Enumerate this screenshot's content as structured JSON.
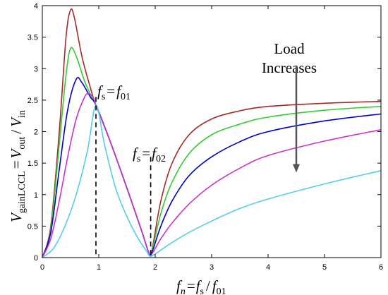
{
  "chart_data": {
    "type": "line",
    "xlim": [
      0,
      6
    ],
    "ylim": [
      0,
      4
    ],
    "x_ticks": [
      "0",
      "1",
      "2",
      "3",
      "4",
      "5",
      "6"
    ],
    "y_ticks": [
      "0",
      "0.5",
      "1",
      "1.5",
      "2",
      "2.5",
      "3",
      "3.5",
      "4"
    ],
    "grid": false,
    "xlabel": {
      "var": "f",
      "var_sub": "n",
      "eq": "=",
      "num": "f",
      "num_sub": "s",
      "slash": "/",
      "den": "f",
      "den_sub": "01"
    },
    "ylabel": {
      "var": "V",
      "var_sub": "gainLCCL",
      "eq": "=",
      "num": "V",
      "num_sub": "out",
      "slash": "/",
      "den": "V",
      "den_sub": "in"
    },
    "annotations": {
      "fs_f01": {
        "a": "f",
        "a_sub": "s",
        "eq": "=",
        "b": "f",
        "b_sub": "01"
      },
      "fs_f02": {
        "a": "f",
        "a_sub": "s",
        "eq": "=",
        "b": "f",
        "b_sub": "02"
      },
      "load_line1": "Load",
      "load_line2": "Increases"
    },
    "reference_lines": [
      {
        "x": 0.95,
        "y_top": 2.55
      },
      {
        "x": 1.92,
        "y_top": 1.6
      }
    ],
    "arrow": {
      "x": 4.5,
      "y_from": 3.05,
      "y_to": 1.35
    },
    "series": [
      {
        "color": "#a52a2a",
        "points": [
          [
            0,
            0
          ],
          [
            0.15,
            0.5
          ],
          [
            0.3,
            2.0
          ],
          [
            0.42,
            3.5
          ],
          [
            0.5,
            3.93
          ],
          [
            0.57,
            3.8
          ],
          [
            0.7,
            3.2
          ],
          [
            0.85,
            2.7
          ],
          [
            0.95,
            2.42
          ],
          [
            1.2,
            1.85
          ],
          [
            1.5,
            1.1
          ],
          [
            1.75,
            0.45
          ],
          [
            1.9,
            0.05
          ],
          [
            1.95,
            0.15
          ],
          [
            2.1,
            0.9
          ],
          [
            2.3,
            1.5
          ],
          [
            2.6,
            1.95
          ],
          [
            3,
            2.2
          ],
          [
            3.5,
            2.33
          ],
          [
            4,
            2.4
          ],
          [
            5,
            2.45
          ],
          [
            6,
            2.48
          ]
        ]
      },
      {
        "color": "#33cc33",
        "points": [
          [
            0,
            0
          ],
          [
            0.15,
            0.45
          ],
          [
            0.3,
            1.8
          ],
          [
            0.42,
            2.9
          ],
          [
            0.5,
            3.32
          ],
          [
            0.6,
            3.2
          ],
          [
            0.75,
            2.8
          ],
          [
            0.9,
            2.5
          ],
          [
            0.95,
            2.42
          ],
          [
            1.2,
            1.85
          ],
          [
            1.5,
            1.1
          ],
          [
            1.75,
            0.45
          ],
          [
            1.9,
            0.05
          ],
          [
            1.95,
            0.13
          ],
          [
            2.1,
            0.7
          ],
          [
            2.3,
            1.2
          ],
          [
            2.6,
            1.65
          ],
          [
            3,
            1.95
          ],
          [
            3.5,
            2.12
          ],
          [
            4,
            2.23
          ],
          [
            5,
            2.34
          ],
          [
            6,
            2.4
          ]
        ]
      },
      {
        "color": "#0000cc",
        "points": [
          [
            0,
            0
          ],
          [
            0.15,
            0.4
          ],
          [
            0.3,
            1.4
          ],
          [
            0.45,
            2.35
          ],
          [
            0.6,
            2.83
          ],
          [
            0.7,
            2.78
          ],
          [
            0.85,
            2.55
          ],
          [
            0.95,
            2.42
          ],
          [
            1.2,
            1.85
          ],
          [
            1.5,
            1.1
          ],
          [
            1.75,
            0.45
          ],
          [
            1.9,
            0.05
          ],
          [
            1.95,
            0.1
          ],
          [
            2.1,
            0.5
          ],
          [
            2.3,
            0.9
          ],
          [
            2.6,
            1.3
          ],
          [
            3,
            1.6
          ],
          [
            3.5,
            1.84
          ],
          [
            4,
            2.0
          ],
          [
            5,
            2.17
          ],
          [
            6,
            2.28
          ]
        ]
      },
      {
        "color": "#cc33cc",
        "points": [
          [
            0,
            0
          ],
          [
            0.15,
            0.3
          ],
          [
            0.3,
            0.9
          ],
          [
            0.45,
            1.6
          ],
          [
            0.6,
            2.2
          ],
          [
            0.75,
            2.55
          ],
          [
            0.82,
            2.6
          ],
          [
            0.9,
            2.55
          ],
          [
            0.95,
            2.42
          ],
          [
            1.2,
            1.85
          ],
          [
            1.5,
            1.1
          ],
          [
            1.75,
            0.45
          ],
          [
            1.9,
            0.05
          ],
          [
            1.95,
            0.07
          ],
          [
            2.1,
            0.3
          ],
          [
            2.3,
            0.55
          ],
          [
            2.6,
            0.85
          ],
          [
            3,
            1.15
          ],
          [
            3.5,
            1.42
          ],
          [
            4,
            1.62
          ],
          [
            5,
            1.85
          ],
          [
            6,
            2.03
          ]
        ]
      },
      {
        "color": "#55ccee",
        "points": [
          [
            0,
            0
          ],
          [
            0.2,
            0.15
          ],
          [
            0.4,
            0.5
          ],
          [
            0.6,
            1.0
          ],
          [
            0.8,
            1.7
          ],
          [
            0.95,
            2.42
          ],
          [
            1.1,
            1.8
          ],
          [
            1.3,
            1.1
          ],
          [
            1.5,
            0.65
          ],
          [
            1.7,
            0.3
          ],
          [
            1.85,
            0.1
          ],
          [
            1.92,
            0.02
          ],
          [
            2.1,
            0.12
          ],
          [
            2.3,
            0.24
          ],
          [
            2.6,
            0.4
          ],
          [
            3,
            0.58
          ],
          [
            3.5,
            0.78
          ],
          [
            4,
            0.93
          ],
          [
            5,
            1.17
          ],
          [
            6,
            1.38
          ]
        ]
      }
    ]
  }
}
